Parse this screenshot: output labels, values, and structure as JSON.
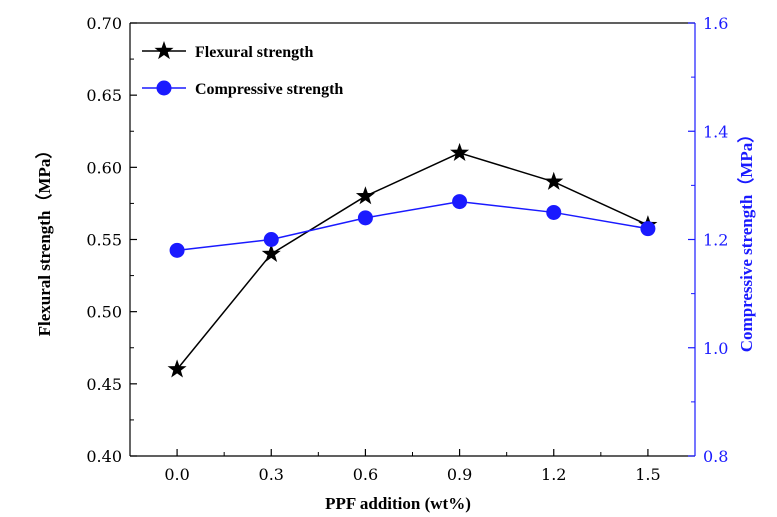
{
  "chart_data": {
    "type": "line",
    "x": [
      0.0,
      0.3,
      0.6,
      0.9,
      1.2,
      1.5
    ],
    "x_tick_labels": [
      "0.0",
      "0.3",
      "0.6",
      "0.9",
      "1.2",
      "1.5"
    ],
    "xlabel": "PPF addition (wt%)",
    "ylabel_left": "Flexural strength（MPa）",
    "ylabel_right": "Compressive strength（MPa）",
    "xlim": [
      -0.15,
      1.65
    ],
    "ylim_left": [
      0.4,
      0.7
    ],
    "ylim_right": [
      0.8,
      1.6
    ],
    "y_left_tick_labels": [
      "0.40",
      "0.45",
      "0.50",
      "0.55",
      "0.60",
      "0.65",
      "0.70"
    ],
    "y_left_ticks": [
      0.4,
      0.45,
      0.5,
      0.55,
      0.6,
      0.65,
      0.7
    ],
    "y_right_tick_labels": [
      "0.8",
      "1.0",
      "1.2",
      "1.4",
      "1.6"
    ],
    "y_right_ticks": [
      0.8,
      1.0,
      1.2,
      1.4,
      1.6
    ],
    "grid": false,
    "legend_position": "top-left",
    "series": [
      {
        "name": "Flexural strength",
        "axis": "left",
        "marker": "star",
        "color": "#000000",
        "values": [
          0.46,
          0.54,
          0.58,
          0.61,
          0.59,
          0.56
        ]
      },
      {
        "name": "Compressive strength",
        "axis": "right",
        "marker": "circle",
        "color": "#1a1aff",
        "values": [
          1.18,
          1.2,
          1.24,
          1.27,
          1.25,
          1.22
        ]
      }
    ]
  }
}
